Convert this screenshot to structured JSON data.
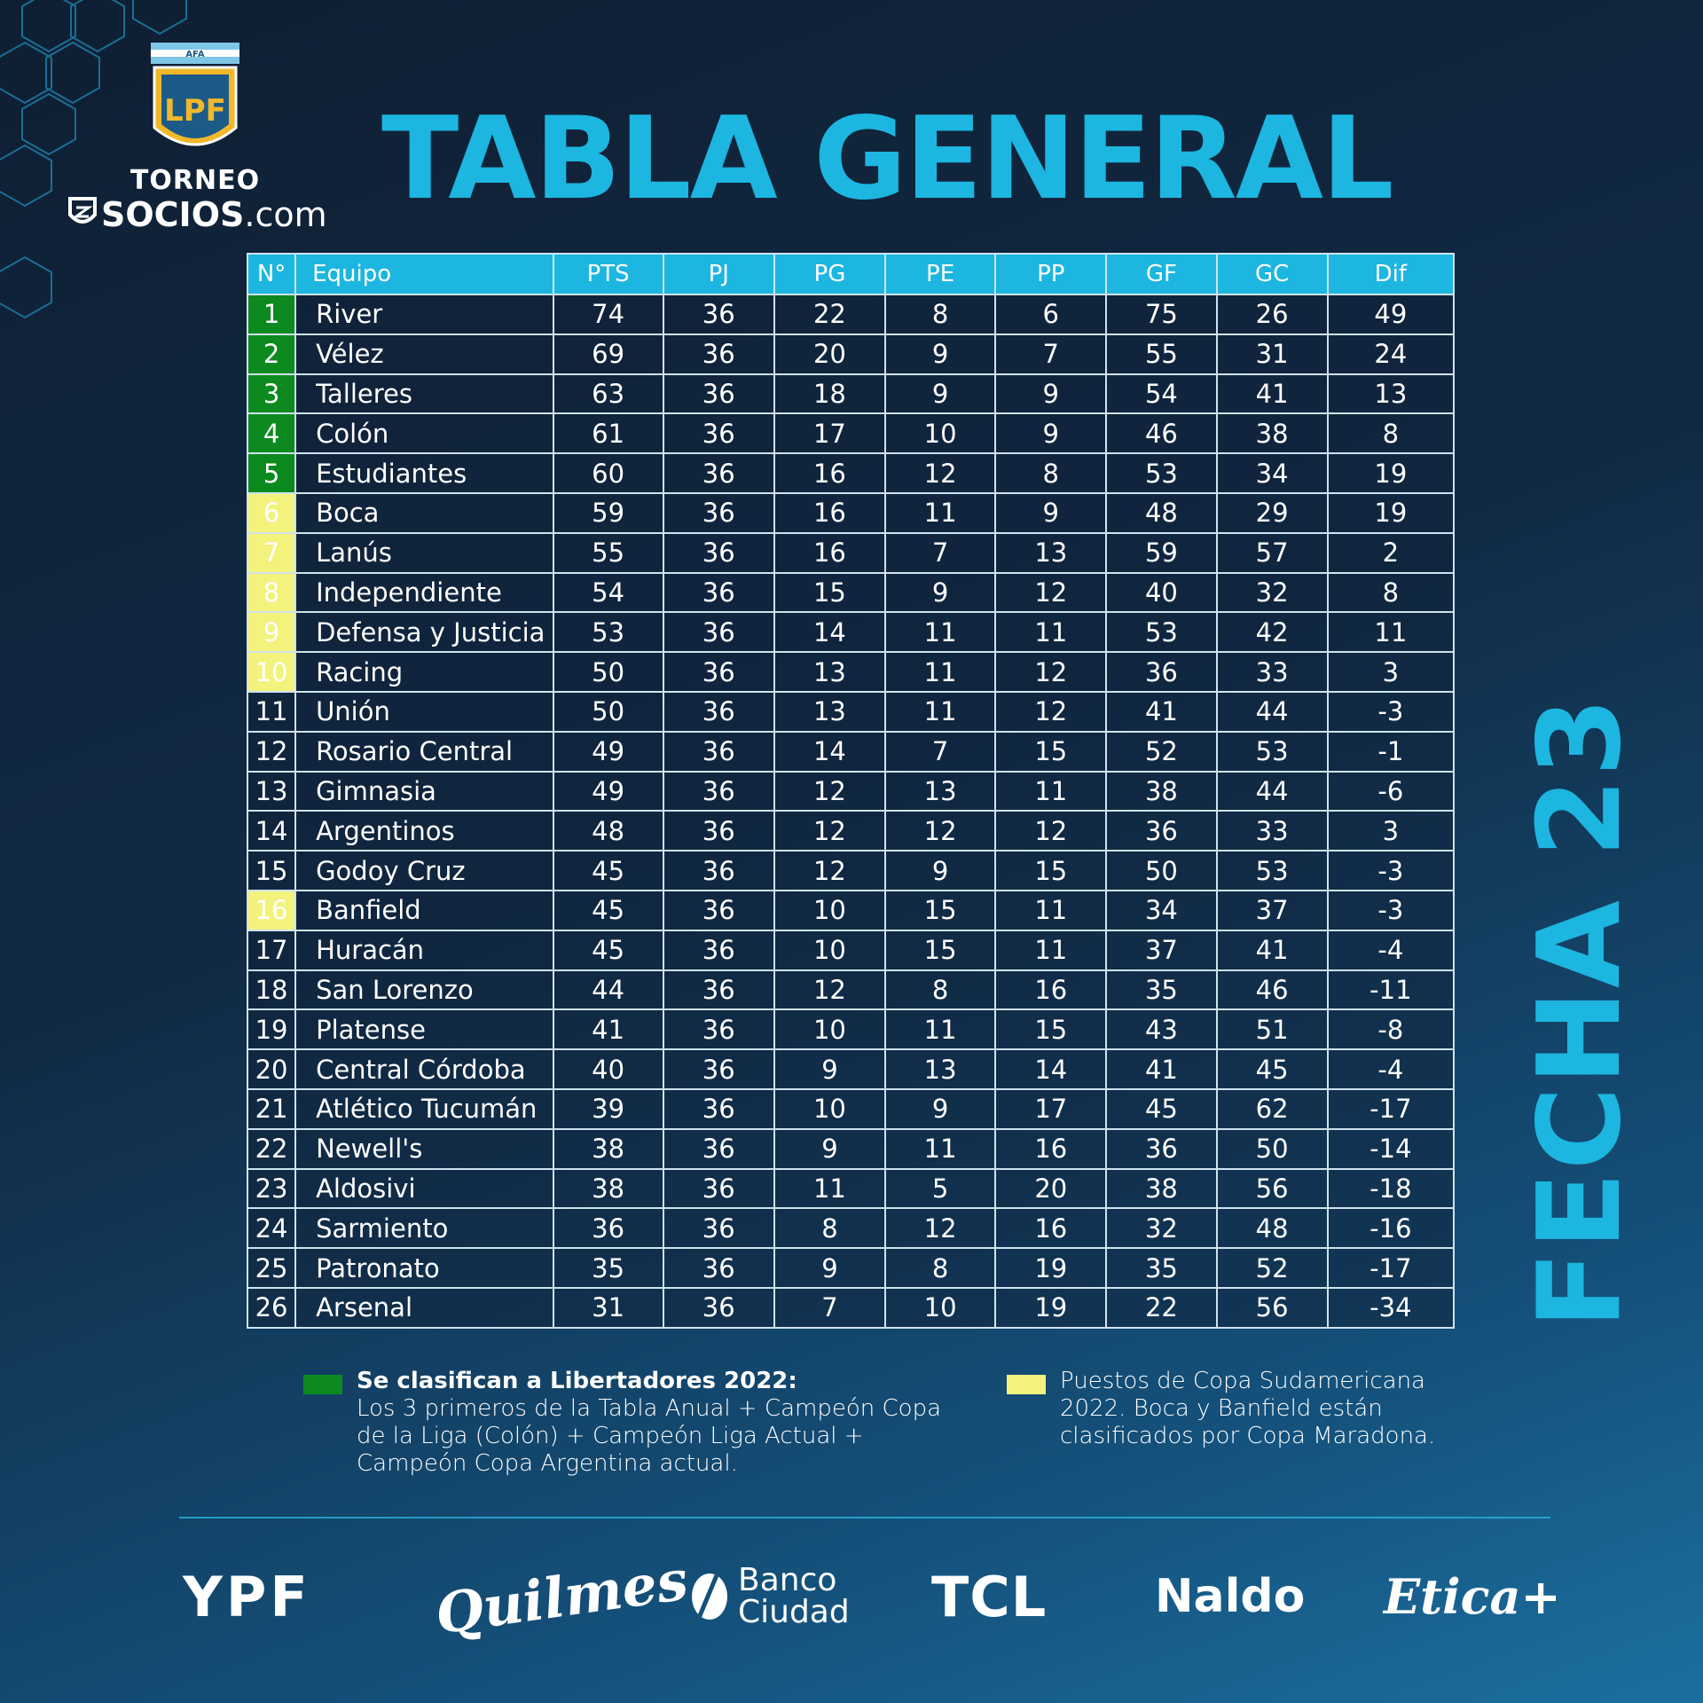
{
  "logo": {
    "afa_label": "AFA",
    "lpf_mark": "LPF",
    "torneo": "TORNEO",
    "socios": "SOCIOS",
    "com": ".com"
  },
  "title": "TABLA GENERAL",
  "side_label": "FECHA 23",
  "table": {
    "headers": [
      "N°",
      "Equipo",
      "PTS",
      "PJ",
      "PG",
      "PE",
      "PP",
      "GF",
      "GC",
      "Dif"
    ],
    "rows": [
      {
        "pos": "1",
        "team": "River",
        "pts": "74",
        "pj": "36",
        "pg": "22",
        "pe": "8",
        "pp": "6",
        "gf": "75",
        "gc": "26",
        "dif": "49",
        "zone": "green"
      },
      {
        "pos": "2",
        "team": "Vélez",
        "pts": "69",
        "pj": "36",
        "pg": "20",
        "pe": "9",
        "pp": "7",
        "gf": "55",
        "gc": "31",
        "dif": "24",
        "zone": "green"
      },
      {
        "pos": "3",
        "team": "Talleres",
        "pts": "63",
        "pj": "36",
        "pg": "18",
        "pe": "9",
        "pp": "9",
        "gf": "54",
        "gc": "41",
        "dif": "13",
        "zone": "green"
      },
      {
        "pos": "4",
        "team": "Colón",
        "pts": "61",
        "pj": "36",
        "pg": "17",
        "pe": "10",
        "pp": "9",
        "gf": "46",
        "gc": "38",
        "dif": "8",
        "zone": "green"
      },
      {
        "pos": "5",
        "team": "Estudiantes",
        "pts": "60",
        "pj": "36",
        "pg": "16",
        "pe": "12",
        "pp": "8",
        "gf": "53",
        "gc": "34",
        "dif": "19",
        "zone": "green"
      },
      {
        "pos": "6",
        "team": "Boca",
        "pts": "59",
        "pj": "36",
        "pg": "16",
        "pe": "11",
        "pp": "9",
        "gf": "48",
        "gc": "29",
        "dif": "19",
        "zone": "yellow"
      },
      {
        "pos": "7",
        "team": "Lanús",
        "pts": "55",
        "pj": "36",
        "pg": "16",
        "pe": "7",
        "pp": "13",
        "gf": "59",
        "gc": "57",
        "dif": "2",
        "zone": "yellow"
      },
      {
        "pos": "8",
        "team": "Independiente",
        "pts": "54",
        "pj": "36",
        "pg": "15",
        "pe": "9",
        "pp": "12",
        "gf": "40",
        "gc": "32",
        "dif": "8",
        "zone": "yellow"
      },
      {
        "pos": "9",
        "team": "Defensa y Justicia",
        "pts": "53",
        "pj": "36",
        "pg": "14",
        "pe": "11",
        "pp": "11",
        "gf": "53",
        "gc": "42",
        "dif": "11",
        "zone": "yellow"
      },
      {
        "pos": "10",
        "team": "Racing",
        "pts": "50",
        "pj": "36",
        "pg": "13",
        "pe": "11",
        "pp": "12",
        "gf": "36",
        "gc": "33",
        "dif": "3",
        "zone": "yellow"
      },
      {
        "pos": "11",
        "team": "Unión",
        "pts": "50",
        "pj": "36",
        "pg": "13",
        "pe": "11",
        "pp": "12",
        "gf": "41",
        "gc": "44",
        "dif": "-3",
        "zone": "none"
      },
      {
        "pos": "12",
        "team": "Rosario Central",
        "pts": "49",
        "pj": "36",
        "pg": "14",
        "pe": "7",
        "pp": "15",
        "gf": "52",
        "gc": "53",
        "dif": "-1",
        "zone": "none"
      },
      {
        "pos": "13",
        "team": "Gimnasia",
        "pts": "49",
        "pj": "36",
        "pg": "12",
        "pe": "13",
        "pp": "11",
        "gf": "38",
        "gc": "44",
        "dif": "-6",
        "zone": "none"
      },
      {
        "pos": "14",
        "team": "Argentinos",
        "pts": "48",
        "pj": "36",
        "pg": "12",
        "pe": "12",
        "pp": "12",
        "gf": "36",
        "gc": "33",
        "dif": "3",
        "zone": "none"
      },
      {
        "pos": "15",
        "team": "Godoy Cruz",
        "pts": "45",
        "pj": "36",
        "pg": "12",
        "pe": "9",
        "pp": "15",
        "gf": "50",
        "gc": "53",
        "dif": "-3",
        "zone": "none"
      },
      {
        "pos": "16",
        "team": "Banfield",
        "pts": "45",
        "pj": "36",
        "pg": "10",
        "pe": "15",
        "pp": "11",
        "gf": "34",
        "gc": "37",
        "dif": "-3",
        "zone": "yellow"
      },
      {
        "pos": "17",
        "team": "Huracán",
        "pts": "45",
        "pj": "36",
        "pg": "10",
        "pe": "15",
        "pp": "11",
        "gf": "37",
        "gc": "41",
        "dif": "-4",
        "zone": "none"
      },
      {
        "pos": "18",
        "team": "San Lorenzo",
        "pts": "44",
        "pj": "36",
        "pg": "12",
        "pe": "8",
        "pp": "16",
        "gf": "35",
        "gc": "46",
        "dif": "-11",
        "zone": "none"
      },
      {
        "pos": "19",
        "team": "Platense",
        "pts": "41",
        "pj": "36",
        "pg": "10",
        "pe": "11",
        "pp": "15",
        "gf": "43",
        "gc": "51",
        "dif": "-8",
        "zone": "none"
      },
      {
        "pos": "20",
        "team": "Central Córdoba",
        "pts": "40",
        "pj": "36",
        "pg": "9",
        "pe": "13",
        "pp": "14",
        "gf": "41",
        "gc": "45",
        "dif": "-4",
        "zone": "none"
      },
      {
        "pos": "21",
        "team": "Atlético Tucumán",
        "pts": "39",
        "pj": "36",
        "pg": "10",
        "pe": "9",
        "pp": "17",
        "gf": "45",
        "gc": "62",
        "dif": "-17",
        "zone": "none"
      },
      {
        "pos": "22",
        "team": "Newell's",
        "pts": "38",
        "pj": "36",
        "pg": "9",
        "pe": "11",
        "pp": "16",
        "gf": "36",
        "gc": "50",
        "dif": "-14",
        "zone": "none"
      },
      {
        "pos": "23",
        "team": "Aldosivi",
        "pts": "38",
        "pj": "36",
        "pg": "11",
        "pe": "5",
        "pp": "20",
        "gf": "38",
        "gc": "56",
        "dif": "-18",
        "zone": "none"
      },
      {
        "pos": "24",
        "team": "Sarmiento",
        "pts": "36",
        "pj": "36",
        "pg": "8",
        "pe": "12",
        "pp": "16",
        "gf": "32",
        "gc": "48",
        "dif": "-16",
        "zone": "none"
      },
      {
        "pos": "25",
        "team": "Patronato",
        "pts": "35",
        "pj": "36",
        "pg": "9",
        "pe": "8",
        "pp": "19",
        "gf": "35",
        "gc": "52",
        "dif": "-17",
        "zone": "none"
      },
      {
        "pos": "26",
        "team": "Arsenal",
        "pts": "31",
        "pj": "36",
        "pg": "7",
        "pe": "10",
        "pp": "19",
        "gf": "22",
        "gc": "56",
        "dif": "-34",
        "zone": "none"
      }
    ]
  },
  "legend": {
    "green": {
      "color": "#0d8a1f",
      "title": "Se clasifican a Libertadores 2022:",
      "text": "Los 3 primeros de la Tabla Anual  + Campeón Copa de la Liga (Colón) + Campeón Liga Actual + Campeón Copa Argentina actual."
    },
    "yellow": {
      "color": "#f3f27c",
      "text": "Puestos de Copa Sudamericana 2022. Boca y Banfield están clasificados por Copa Maradona."
    }
  },
  "sponsors": {
    "ypf": "YPF",
    "quilmes": "Quilmes",
    "banco_line1": "Banco",
    "banco_line2": "Ciudad",
    "tcl": "TCL",
    "naldo": "Naldo",
    "etica": "Etica+"
  },
  "colors": {
    "accent": "#1cb6e0",
    "background_dark": "#0f1f33",
    "background_light": "#1b6fa0"
  }
}
